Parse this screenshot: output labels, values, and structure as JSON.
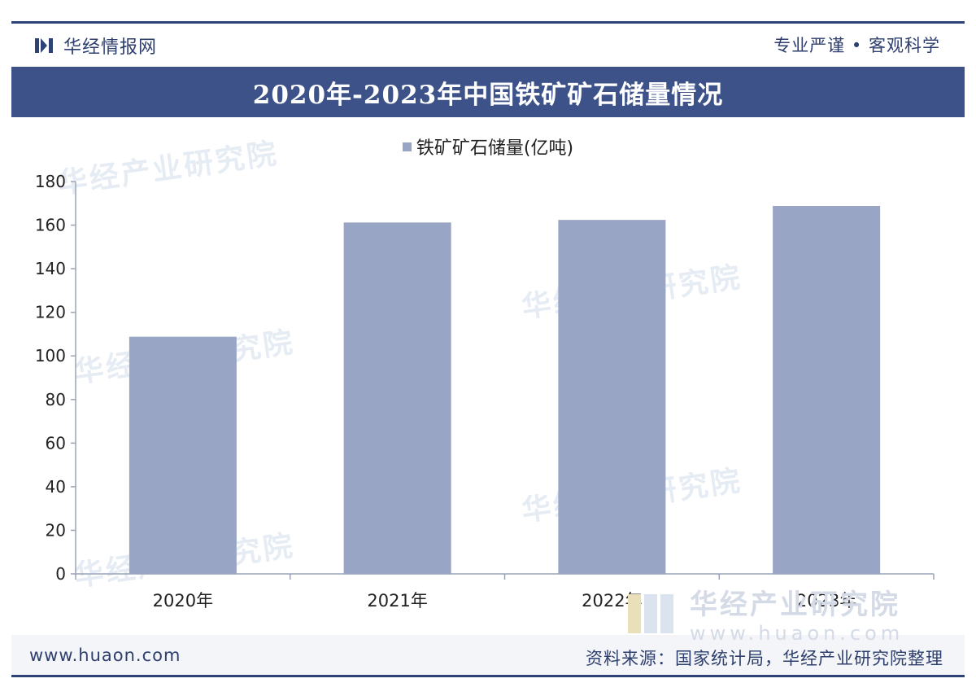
{
  "header": {
    "brand_name": "华经情报网",
    "slogan": "专业严谨 • 客观科学"
  },
  "title": "2020年-2023年中国铁矿矿石储量情况",
  "watermark": "华经产业研究院",
  "footer": {
    "url": "www.huaon.com",
    "source": "资料来源：国家统计局，华经产业研究院整理",
    "logo_name": "华经产业研究院",
    "logo_url": "www.huaon.com"
  },
  "colors": {
    "bar": "#99a5c4",
    "axis": "#9aa3b5",
    "title_bar": "#3c5289"
  },
  "chart_data": {
    "type": "bar",
    "title": "2020年-2023年中国铁矿矿石储量情况",
    "categories": [
      "2020年",
      "2021年",
      "2022年",
      "2023年"
    ],
    "series": [
      {
        "name": "铁矿矿石储量(亿吨)",
        "values": [
          108.8,
          161.2,
          162.4,
          168.8
        ]
      }
    ],
    "ylim": [
      0,
      180
    ],
    "yticks": [
      0,
      20,
      40,
      60,
      80,
      100,
      120,
      140,
      160,
      180
    ],
    "grid": false,
    "legend": "top-center"
  }
}
